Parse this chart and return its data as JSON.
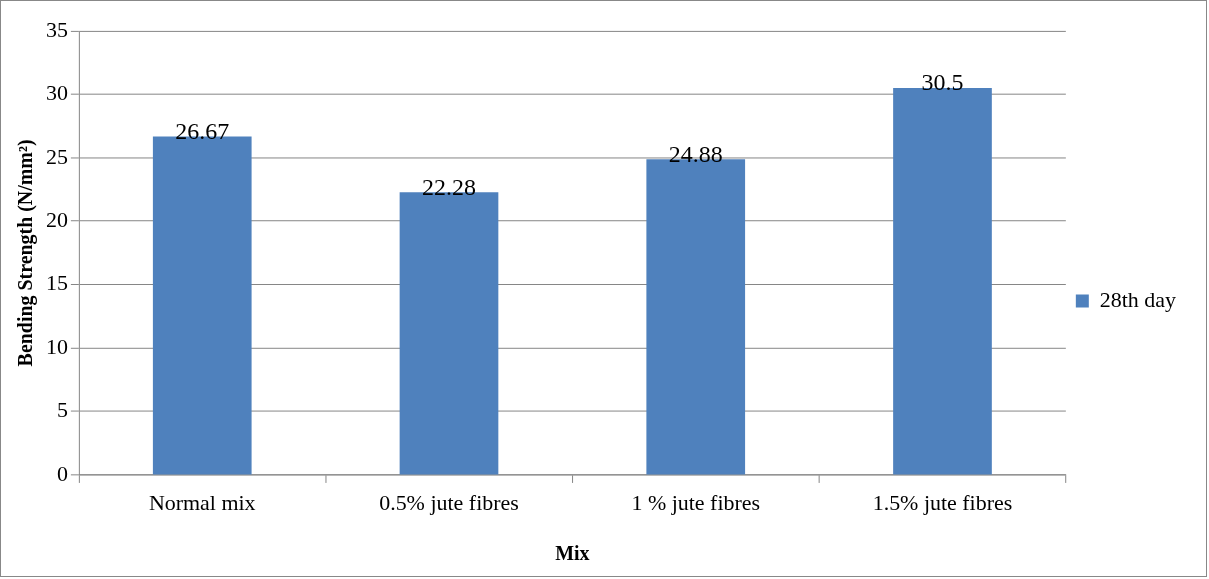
{
  "chart_data": {
    "type": "bar",
    "xlabel": "Mix",
    "ylabel": "Bending Strength (N/mm²)",
    "categories": [
      "Normal mix",
      "0.5% jute fibres",
      "1 % jute fibres",
      "1.5% jute fibres"
    ],
    "series": [
      {
        "name": "28th day",
        "color": "#4f81bd",
        "values": [
          26.67,
          22.28,
          24.88,
          30.5
        ]
      }
    ],
    "ylim": [
      0,
      35
    ],
    "yticks": [
      0,
      5,
      10,
      15,
      20,
      25,
      30,
      35
    ],
    "grid": "y",
    "legend": "right",
    "data_labels": true
  }
}
